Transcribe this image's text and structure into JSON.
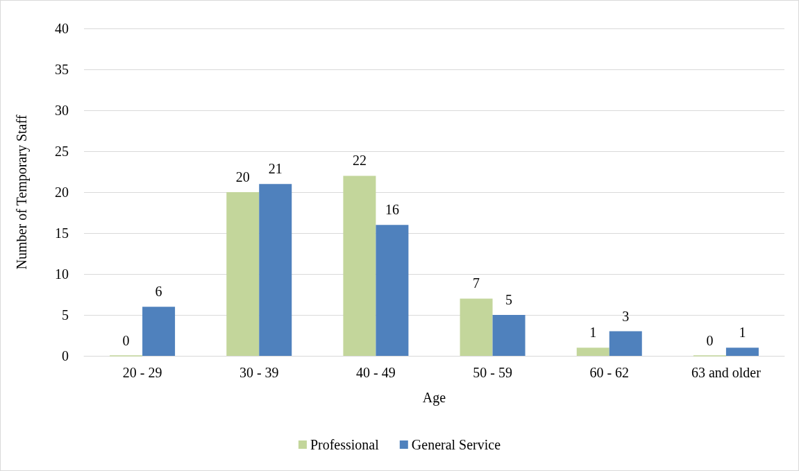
{
  "chart_data": {
    "type": "bar",
    "xlabel": "Age",
    "ylabel": "Number of Temporary Staff",
    "categories": [
      "20 - 29",
      "30 - 39",
      "40 - 49",
      "50 - 59",
      "60 - 62",
      "63 and older"
    ],
    "series": [
      {
        "name": "Professional",
        "color": "#c3d69b",
        "values": [
          0,
          20,
          22,
          7,
          1,
          0
        ]
      },
      {
        "name": "General Service",
        "color": "#4f81bd",
        "values": [
          6,
          21,
          16,
          5,
          3,
          1
        ]
      }
    ],
    "ylim": [
      0,
      40
    ],
    "yticks": [
      0,
      5,
      10,
      15,
      20,
      25,
      30,
      35,
      40
    ],
    "grid": "y",
    "legend": "bottom",
    "data_labels": true
  }
}
